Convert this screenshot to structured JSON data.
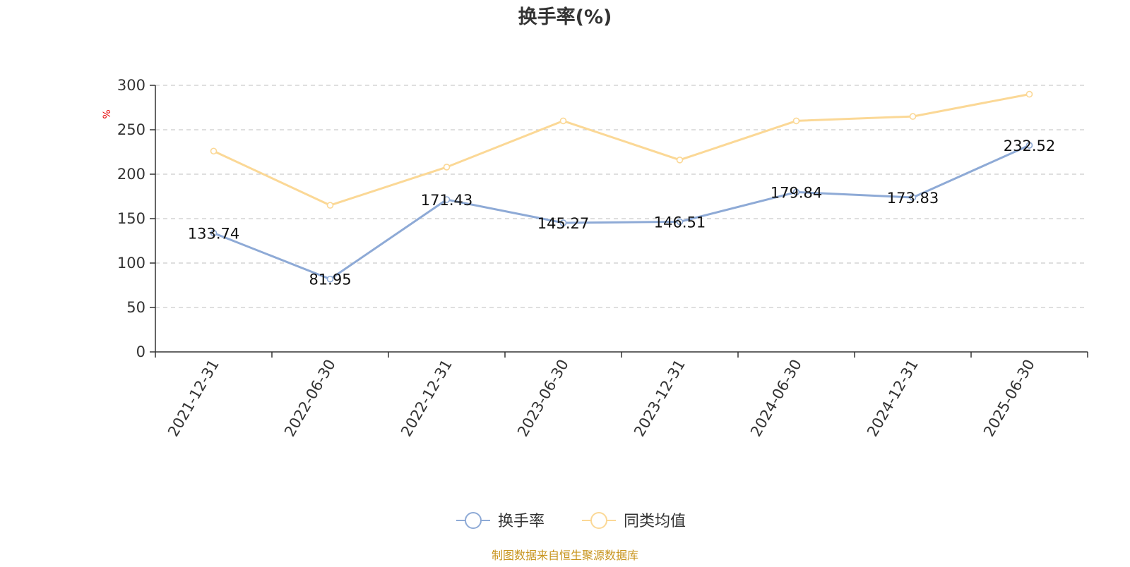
{
  "chart_data": {
    "type": "line",
    "title": "换手率(%)",
    "ylabel": "%",
    "xlabel": "",
    "ylim": [
      0,
      300
    ],
    "yticks": [
      0,
      50,
      100,
      150,
      200,
      250,
      300
    ],
    "grid": "horizontal dashed",
    "legend_position": "bottom-center",
    "categories": [
      "2021-12-31",
      "2022-06-30",
      "2022-12-31",
      "2023-06-30",
      "2023-12-31",
      "2024-06-30",
      "2024-12-31",
      "2025-06-30"
    ],
    "series": [
      {
        "name": "换手率",
        "color": "#8eaad6",
        "values": [
          133.74,
          81.95,
          171.43,
          145.27,
          146.51,
          179.84,
          173.83,
          232.52
        ],
        "data_labels": [
          "133.74",
          "81.95",
          "171.43",
          "145.27",
          "146.51",
          "179.84",
          "173.83",
          "232.52"
        ]
      },
      {
        "name": "同类均值",
        "color": "#fbd896",
        "values": [
          226,
          165,
          208,
          260,
          216,
          260,
          265,
          290
        ]
      }
    ],
    "source_note": "制图数据来自恒生聚源数据库"
  }
}
